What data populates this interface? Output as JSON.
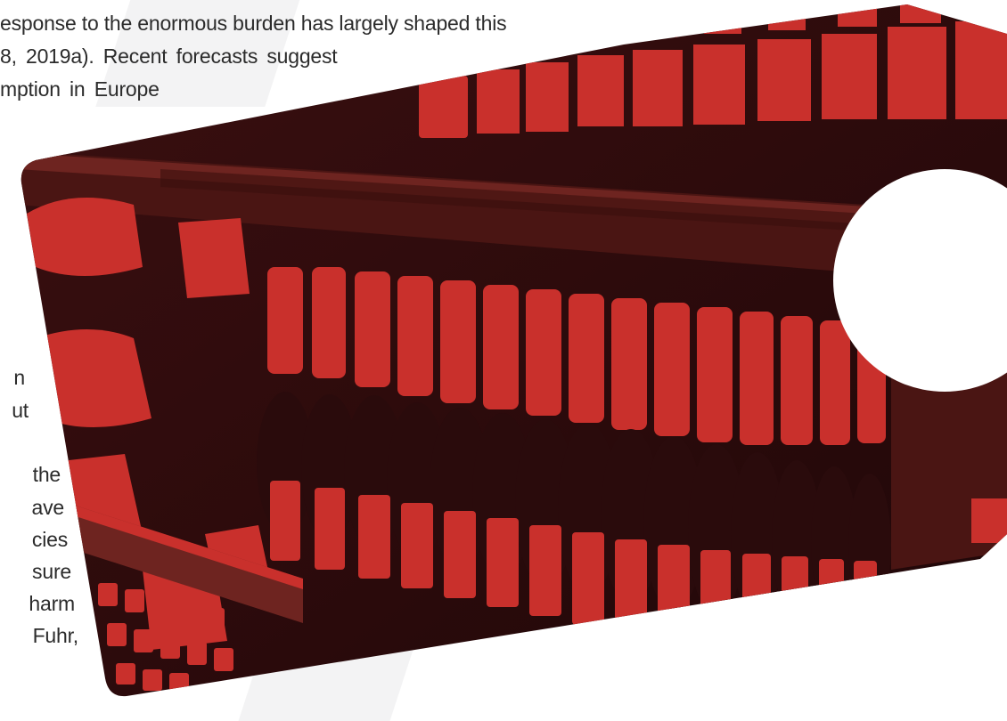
{
  "document": {
    "top_lines": [
      "esponse to the enormous burden has largely shaped this",
      "8, 2019a). Recent forecasts suggest",
      "mption in Europe"
    ],
    "left_fragments": [
      "n",
      "ut",
      "the",
      "ave",
      "cies",
      "sure",
      "harm",
      "Fuhr,"
    ]
  },
  "image": {
    "subject": "alcohol bottles on store shelves",
    "tint_color": "#c9302c",
    "shadow_color": "#2a0b0c",
    "hole_color": "#ffffff"
  }
}
